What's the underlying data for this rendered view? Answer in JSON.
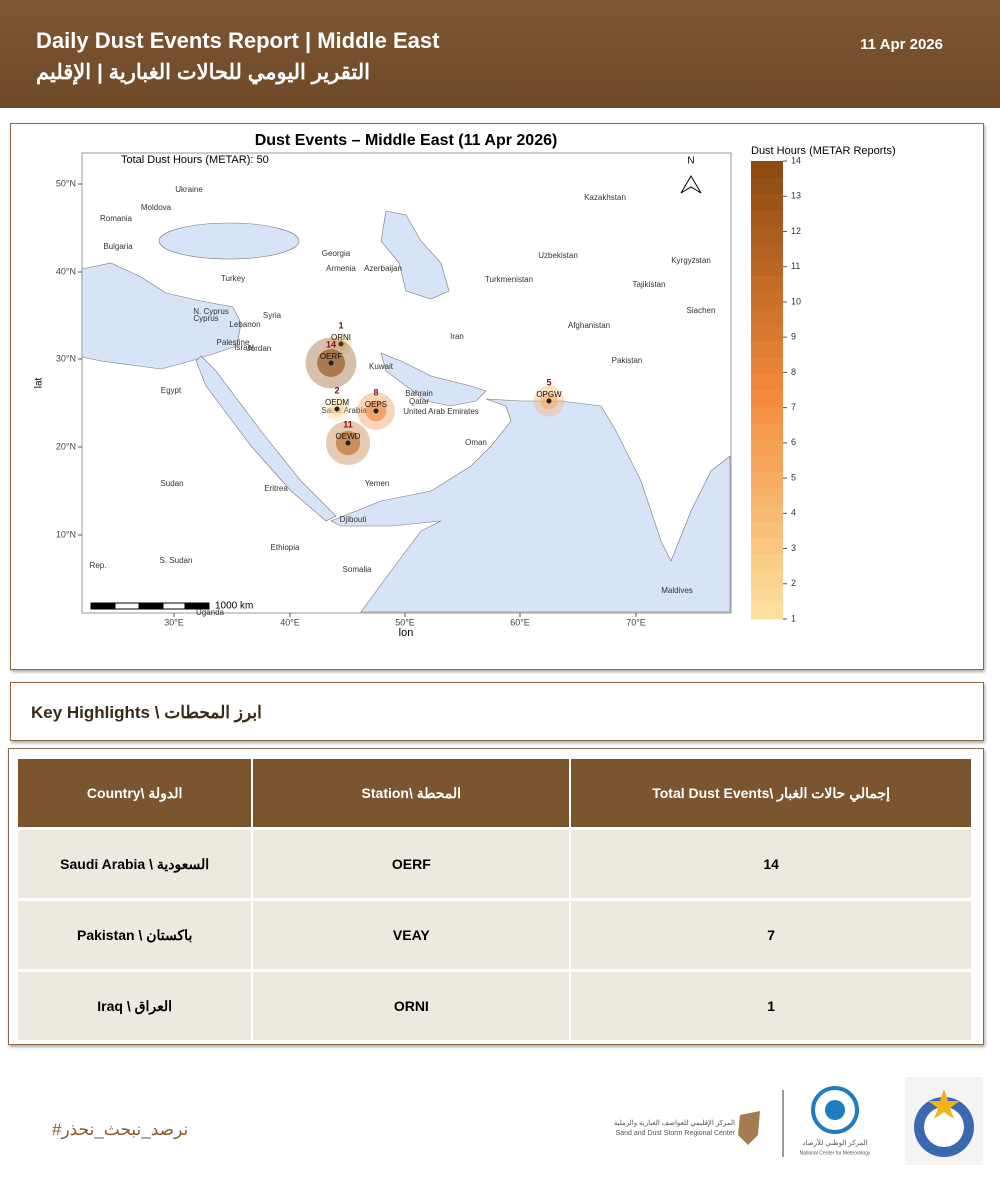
{
  "header": {
    "title": "Daily Dust Events Report | Middle East",
    "title_ar": "التقرير اليومي للحالات الغبارية | الإقليم",
    "date": "11 Apr 2026"
  },
  "map": {
    "title": "Dust Events – Middle East (11 Apr 2026)",
    "subtitle": "Total Dust Hours (METAR): 50",
    "x_label": "lon",
    "y_label": "lat",
    "north": "N",
    "scale_label": "1000 km",
    "xticks": [
      "30°E",
      "40°E",
      "50°E",
      "60°E",
      "70°E"
    ],
    "yticks": [
      "50°N",
      "40°N",
      "30°N",
      "20°N",
      "10°N"
    ],
    "countries": [
      "Ukraine",
      "Moldova",
      "Romania",
      "Bulgaria",
      "Georgia",
      "Armenia",
      "Azerbaijan",
      "Turkey",
      "Kazakhstan",
      "Uzbekistan",
      "Kyrgyzstan",
      "Turkmenistan",
      "Tajikistan",
      "Syria",
      "N. Cyprus",
      "Cyprus",
      "Lebanon",
      "Iran",
      "Afghanistan",
      "Siachen",
      "Palestine",
      "Israel",
      "Jordan",
      "Kuwait",
      "Pakistan",
      "Egypt",
      "Bahrain",
      "Qatar",
      "Saudi Arabia",
      "United Arab Emirates",
      "Oman",
      "Sudan",
      "Yemen",
      "Eritrea",
      "Djibouti",
      "Ethiopia",
      "S. Sudan",
      "Somalia",
      "Rep.",
      "Maldives",
      "Uganda"
    ],
    "stations": [
      {
        "code": "ORNI",
        "value": 1
      },
      {
        "code": "OERF",
        "value": 14
      },
      {
        "code": "OEDM",
        "value": 2
      },
      {
        "code": "OEPS",
        "value": 8
      },
      {
        "code": "OEWD",
        "value": 11
      },
      {
        "code": "OPGW",
        "value": 5
      }
    ],
    "legend": {
      "title": "Dust Hours (METAR Reports)",
      "lim": [
        1,
        14
      ],
      "ticks": [
        1,
        2,
        3,
        4,
        5,
        6,
        7,
        8,
        9,
        10,
        11,
        12,
        13,
        14
      ],
      "colors": [
        "#fde3a2",
        "#f3893a",
        "#8a4a10"
      ]
    }
  },
  "highlights": {
    "title": "Key Highlights \\ ابرز المحطات"
  },
  "table": {
    "headers": [
      "Country\\ الدولة",
      "Station\\ المحطة",
      "Total Dust Events\\ إجمالي حالات الغبار"
    ],
    "rows": [
      [
        "Saudi Arabia \\ السعودية",
        "OERF",
        "14"
      ],
      [
        "Pakistan \\ باكستان",
        "VEAY",
        "7"
      ],
      [
        "Iraq \\ العراق",
        "ORNI",
        "1"
      ]
    ]
  },
  "footer": {
    "hashtag": "#نرصد_نبحث_نحذر",
    "center_ar": "المركز الإقليمي للعواصف الغبارية والرملية",
    "center_en": "Sand and Dust Storm Regional Center",
    "ncm_ar": "المركز الوطني للأرصاد",
    "ncm_en": "National Center for Meteorology"
  }
}
